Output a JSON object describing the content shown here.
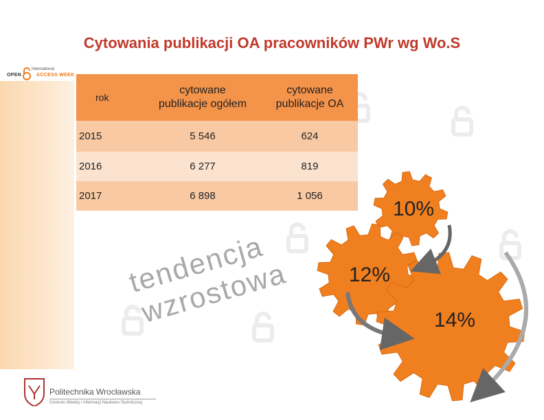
{
  "title": "Cytowania publikacji OA pracowników PWr wg Wo.S",
  "logo_top": {
    "line1": "International",
    "open": "OPEN",
    "access_week": "ACCESS WEEK"
  },
  "table": {
    "headers": [
      "rok",
      "cytowane publikacje ogółem",
      "cytowane publikacje OA"
    ],
    "header_col2": [
      "cytowane",
      "publikacje ogółem"
    ],
    "header_col3": [
      "cytowane",
      "publikacje OA"
    ],
    "rows": [
      {
        "year": "2015",
        "total": "5 546",
        "oa": "624"
      },
      {
        "year": "2016",
        "total": "6 277",
        "oa": "819"
      },
      {
        "year": "2017",
        "total": "6 898",
        "oa": "1 056"
      }
    ]
  },
  "trend_text": {
    "line1": "tendencja",
    "line2": "wzrostowa"
  },
  "gears": {
    "labels": [
      "10%",
      "12%",
      "14%"
    ],
    "color": "#f07f1f"
  },
  "logo_bottom": {
    "name": "Politechnika Wrocławska",
    "sub": "Centrum Wiedzy i Informacji Naukowo-Technicznej"
  },
  "colors": {
    "title": "#c0392b",
    "table_header": "#f4934a",
    "table_row_dark": "#f8c9a3",
    "table_row_light": "#fbe3d0"
  }
}
